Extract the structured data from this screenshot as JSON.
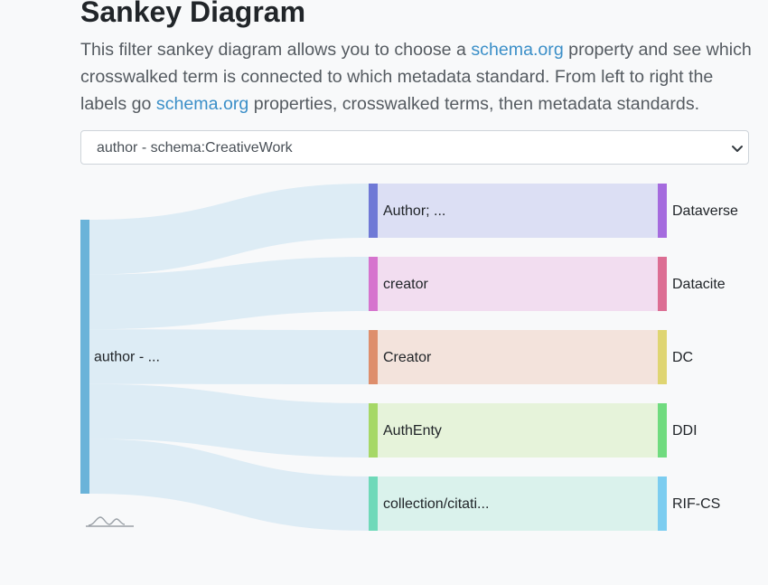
{
  "heading": "Sankey Diagram",
  "description": {
    "part1": "This filter sankey diagram allows you to choose a ",
    "link1": "schema.org",
    "part2": " property and see which crosswalked term is connected to which metadata standard. From left to right the labels go ",
    "link2": "schema.org",
    "part3": " properties, crosswalked terms, then metadata standards."
  },
  "filter_select": {
    "selected": "author - schema:CreativeWork"
  },
  "icons": {
    "select_caret": "chevron-down-icon",
    "chart_logo": "wave-logo-icon"
  },
  "colors": {
    "link": "#3b8fc8",
    "flow": "#ddecf5"
  },
  "chart_data": {
    "type": "sankey",
    "source": {
      "label": "author - ...",
      "color": "#6ab3d9"
    },
    "terms": [
      {
        "label": "Author; ...",
        "color": "#6f79d6",
        "fill": "#dcdff4"
      },
      {
        "label": "creator",
        "color": "#d674ce",
        "fill": "#f2ddf0"
      },
      {
        "label": "Creator",
        "color": "#de8e6c",
        "fill": "#f3e3dc"
      },
      {
        "label": "AuthEnty",
        "color": "#a6d866",
        "fill": "#e6f3da"
      },
      {
        "label": "collection/citati...",
        "color": "#6fd9b9",
        "fill": "#daf2ec"
      }
    ],
    "standards": [
      {
        "label": "Dataverse",
        "color": "#a56bde"
      },
      {
        "label": "Datacite",
        "color": "#dc6e93"
      },
      {
        "label": "DC",
        "color": "#dfd572"
      },
      {
        "label": "DDI",
        "color": "#70db7f"
      },
      {
        "label": "RIF-CS",
        "color": "#7ccdf0"
      }
    ],
    "flows": [
      1,
      1,
      1,
      1,
      1
    ]
  }
}
